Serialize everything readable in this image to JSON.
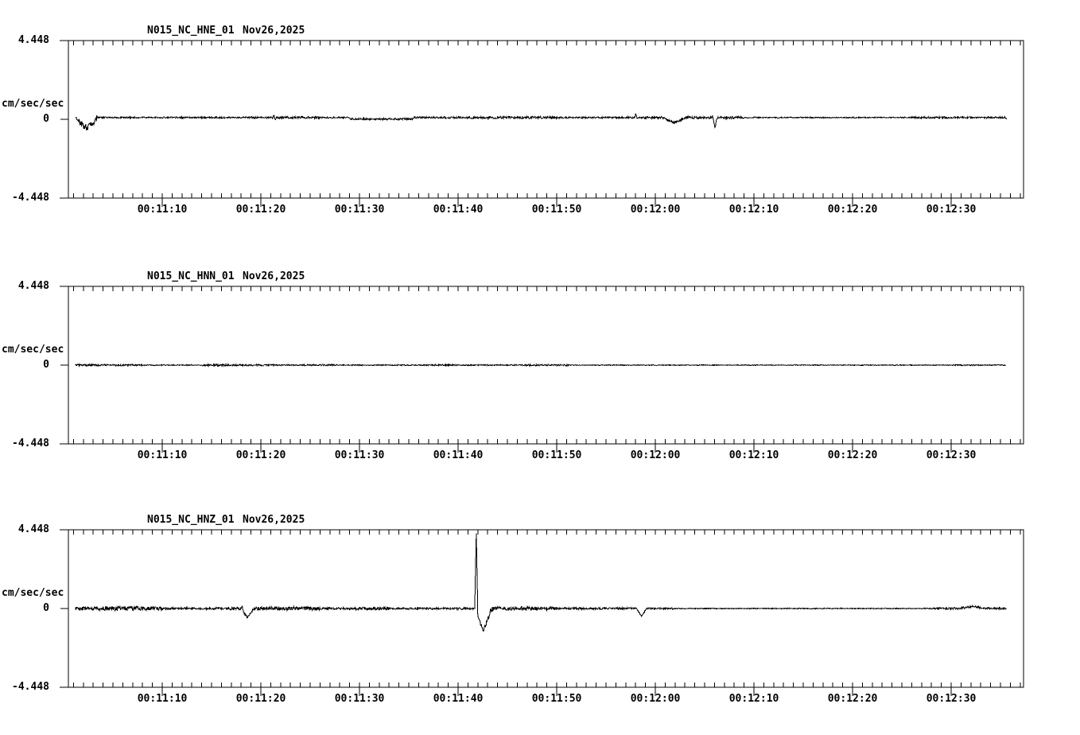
{
  "page": {
    "background": "#ffffff",
    "trace_color": "#000000",
    "axis_color": "#000000"
  },
  "chart_data": [
    {
      "type": "line",
      "title": "N015_NC_HNE_01",
      "date": "Nov26,2025",
      "ylabel": "cm/sec/sec",
      "y_axis": {
        "unit_label": "cm/sec/sec",
        "top": "4.448",
        "zero": "0",
        "bottom": "-4.448",
        "ylim": [
          -4.448,
          4.448
        ]
      },
      "x_axis": {
        "tick_labels": [
          "00:11:10",
          "00:11:20",
          "00:11:30",
          "00:11:40",
          "00:11:50",
          "00:12:00",
          "00:12:10",
          "00:12:20",
          "00:12:30"
        ],
        "tick_seconds": [
          10,
          20,
          30,
          40,
          50,
          60,
          70,
          80,
          90
        ],
        "minor_tick_interval_sec": 1,
        "start_sec": 0.48,
        "end_sec": 97.3
      },
      "trace": {
        "start_sec": 1.2,
        "end_sec": 95.6,
        "seed": 7,
        "base": 0,
        "noise_segments": [
          [
            1.2,
            3.4,
            0.18
          ],
          [
            3.4,
            19,
            0.04
          ],
          [
            19,
            26,
            0.06
          ],
          [
            26,
            28.8,
            0.04
          ],
          [
            28.8,
            35.5,
            0.05
          ],
          [
            35.5,
            43,
            0.05
          ],
          [
            43,
            50,
            0.07
          ],
          [
            50,
            57,
            0.045
          ],
          [
            57,
            69,
            0.07
          ],
          [
            69,
            86,
            0.03
          ],
          [
            86,
            95.6,
            0.05
          ]
        ],
        "offset_segments": [
          [
            3.3,
            95.6,
            0.1
          ],
          [
            29,
            35.5,
            -0.08
          ]
        ],
        "events": [
          {
            "t": 2.32,
            "peak": -0.5,
            "width": 2.2
          },
          {
            "t": 21.32,
            "peak": 0.12,
            "width": 0.24
          },
          {
            "t": 21.48,
            "peak": -0.12,
            "width": 0.24
          },
          {
            "t": 58.0,
            "peak": 0.18,
            "width": 0.24
          },
          {
            "t": 61.9,
            "peak": -0.3,
            "width": 2.4
          },
          {
            "t": 65.8,
            "peak": 0.12,
            "width": 0.24
          },
          {
            "t": 66.04,
            "peak": -0.55,
            "width": 0.48
          }
        ]
      }
    },
    {
      "type": "line",
      "title": "N015_NC_HNN_01",
      "date": "Nov26,2025",
      "ylabel": "cm/sec/sec",
      "y_axis": {
        "unit_label": "cm/sec/sec",
        "top": "4.448",
        "zero": "0",
        "bottom": "-4.448",
        "ylim": [
          -4.448,
          4.448
        ]
      },
      "x_axis": {
        "tick_labels": [
          "00:11:10",
          "00:11:20",
          "00:11:30",
          "00:11:40",
          "00:11:50",
          "00:12:00",
          "00:12:10",
          "00:12:20",
          "00:12:30"
        ],
        "tick_seconds": [
          10,
          20,
          30,
          40,
          50,
          60,
          70,
          80,
          90
        ],
        "minor_tick_interval_sec": 1,
        "start_sec": 0.48,
        "end_sec": 97.3
      },
      "trace": {
        "start_sec": 1.2,
        "end_sec": 95.5,
        "seed": 13,
        "base": 0,
        "noise_segments": [
          [
            1.2,
            8,
            0.05
          ],
          [
            8,
            14,
            0.028
          ],
          [
            14,
            21.3,
            0.05
          ],
          [
            21.3,
            24.4,
            0.03
          ],
          [
            24.4,
            27.6,
            0.045
          ],
          [
            27.6,
            37.3,
            0.028
          ],
          [
            37.3,
            39.7,
            0.045
          ],
          [
            39.7,
            46.5,
            0.032
          ],
          [
            46.5,
            48,
            0.045
          ],
          [
            48,
            51.2,
            0.04
          ],
          [
            51.2,
            90,
            0.02
          ],
          [
            90,
            95.5,
            0.03
          ]
        ],
        "offset_segments": [],
        "events": []
      }
    },
    {
      "type": "line",
      "title": "N015_NC_HNZ_01",
      "date": "Nov26,2025",
      "ylabel": "cm/sec/sec",
      "y_axis": {
        "unit_label": "cm/sec/sec",
        "top": "4.448",
        "zero": "0",
        "bottom": "-4.448",
        "ylim": [
          -4.448,
          4.448
        ]
      },
      "x_axis": {
        "tick_labels": [
          "00:11:10",
          "00:11:20",
          "00:11:30",
          "00:11:40",
          "00:11:50",
          "00:12:00",
          "00:12:10",
          "00:12:20",
          "00:12:30"
        ],
        "tick_seconds": [
          10,
          20,
          30,
          40,
          50,
          60,
          70,
          80,
          90
        ],
        "minor_tick_interval_sec": 1,
        "start_sec": 0.48,
        "end_sec": 97.3
      },
      "trace": {
        "start_sec": 1.2,
        "end_sec": 95.6,
        "seed": 21,
        "base": 0,
        "noise_segments": [
          [
            1.2,
            4,
            0.1
          ],
          [
            4,
            8,
            0.13
          ],
          [
            8,
            10,
            0.1
          ],
          [
            10,
            16.5,
            0.06
          ],
          [
            16.5,
            19.5,
            0.08
          ],
          [
            19.5,
            26,
            0.11
          ],
          [
            26,
            29.5,
            0.06
          ],
          [
            29.5,
            33,
            0.09
          ],
          [
            33,
            40,
            0.05
          ],
          [
            40,
            41.6,
            0.07
          ],
          [
            42.2,
            43.6,
            0.13
          ],
          [
            43.6,
            50,
            0.1
          ],
          [
            50,
            58,
            0.06
          ],
          [
            58,
            59.4,
            0.04
          ],
          [
            59.4,
            62,
            0.045
          ],
          [
            62,
            88,
            0.025
          ],
          [
            88,
            95.6,
            0.06
          ]
        ],
        "offset_segments": [],
        "events": [
          {
            "t": 18.12,
            "peak": 0.2,
            "width": 0.24
          },
          {
            "t": 18.64,
            "peak": -0.55,
            "width": 1.2
          },
          {
            "t": 41.84,
            "peak": 4.448,
            "width": 0.32
          },
          {
            "t": 42.56,
            "peak": -1.25,
            "width": 1.7
          },
          {
            "t": 58.6,
            "peak": -0.45,
            "width": 1.0
          },
          {
            "t": 92.2,
            "peak": 0.13,
            "width": 2.6
          }
        ]
      }
    }
  ]
}
